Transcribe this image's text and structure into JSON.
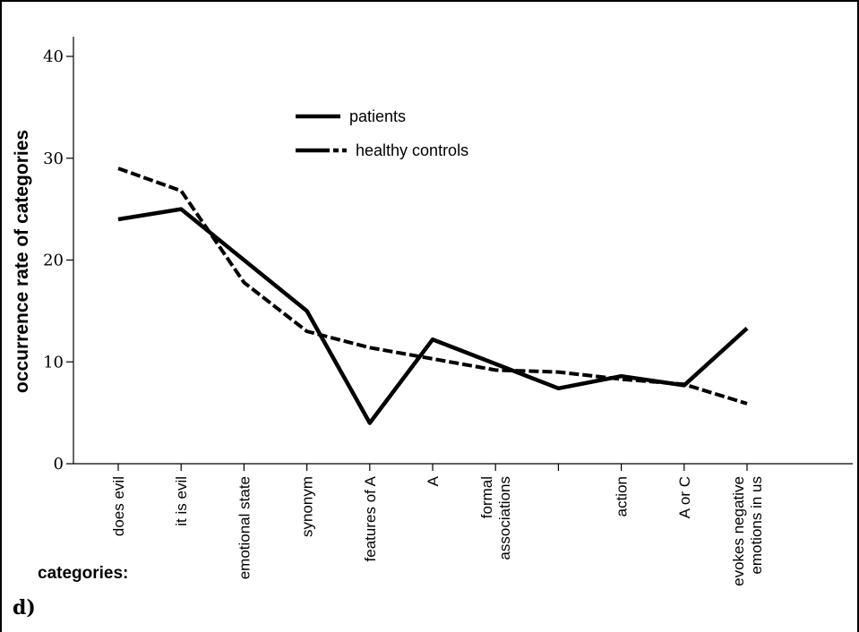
{
  "panel_label": "d)",
  "categories_title": "categories:",
  "chart_data": {
    "type": "line",
    "ylabel": "occurrence rate of categories",
    "ylim": [
      0,
      40
    ],
    "yticks": [
      0,
      10,
      20,
      30,
      40
    ],
    "categories": [
      [
        "does evil"
      ],
      [
        "it is evil"
      ],
      [
        "emotional state"
      ],
      [
        "synonym"
      ],
      [
        "features of A"
      ],
      [
        "A"
      ],
      [
        "formal",
        "associations"
      ],
      [
        ""
      ],
      [
        "action"
      ],
      [
        "A or C"
      ],
      [
        "evokes negative",
        "emotions in us"
      ]
    ],
    "series": [
      {
        "name": "patients",
        "style": "solid",
        "color": "#000000",
        "values": [
          24,
          25,
          20,
          15,
          4,
          12.2,
          9.8,
          7.4,
          8.6,
          7.7,
          13.3
        ]
      },
      {
        "name": "healthy controls",
        "style": "dashed",
        "color": "#000000",
        "values": [
          29,
          26.8,
          17.8,
          13,
          11.4,
          10.3,
          9.2,
          9,
          8.3,
          7.8,
          5.9
        ]
      }
    ],
    "legend": "top-center",
    "grid": false
  }
}
